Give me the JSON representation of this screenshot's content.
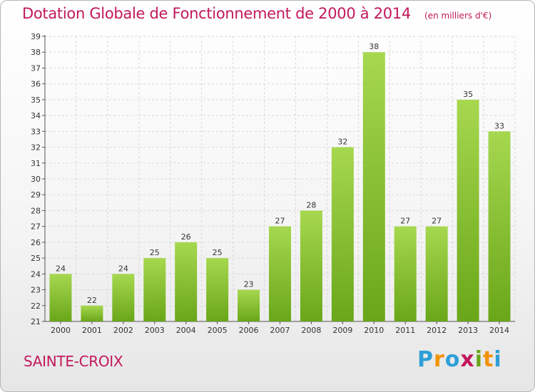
{
  "title": "Dotation Globale de Fonctionnement de 2000 à 2014",
  "unit": "(en milliers d'€)",
  "town": "SAINTE-CROIX",
  "logo": [
    "P",
    "r",
    "o",
    "x",
    "i",
    "t",
    "i"
  ],
  "colors": {
    "title": "#c2185b",
    "bar_light": "#a6d84f",
    "bar_dark": "#6aa619",
    "grid": "#d8d8d8",
    "logo": [
      "#2e9fd8",
      "#f39200",
      "#2e9fd8",
      "#c2185b",
      "#6aa619",
      "#f39200",
      "#2e9fd8"
    ]
  },
  "chart_data": {
    "type": "bar",
    "categories": [
      "2000",
      "2001",
      "2002",
      "2003",
      "2004",
      "2005",
      "2006",
      "2007",
      "2008",
      "2009",
      "2010",
      "2011",
      "2012",
      "2013",
      "2014"
    ],
    "values": [
      24,
      22,
      24,
      25,
      26,
      25,
      23,
      27,
      28,
      32,
      38,
      27,
      27,
      35,
      33
    ],
    "ylim": [
      21,
      39
    ],
    "yticks": [
      21,
      22,
      23,
      24,
      25,
      26,
      27,
      28,
      29,
      30,
      31,
      32,
      33,
      34,
      35,
      36,
      37,
      38,
      39
    ],
    "grid": true
  }
}
